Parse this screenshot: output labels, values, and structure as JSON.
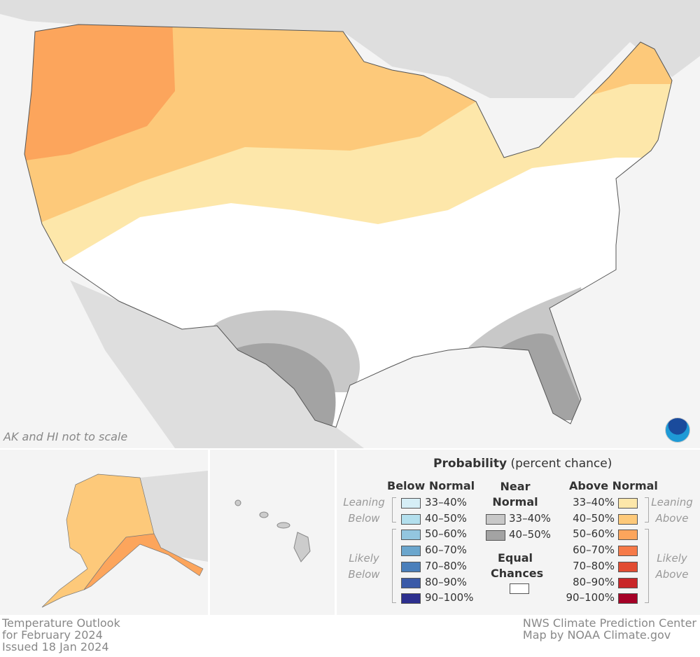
{
  "map": {
    "note": "AK and HI not to scale",
    "logo": "NOAA",
    "colors": {
      "water": "#f4f4f4",
      "land_other": "#dedede",
      "equal": "#ffffff",
      "lean_above_33": "#fde7aa",
      "lean_above_40": "#fdc97a",
      "likely_above_50": "#fca55c",
      "near_33": "#c8c8c8",
      "near_40": "#a3a3a3"
    }
  },
  "legend": {
    "title_bold": "Probability",
    "title_rest": "(percent chance)",
    "below": {
      "heading": "Below Normal",
      "leaning": "Leaning Below",
      "likely": "Likely Below",
      "items": [
        {
          "label": "33–40%",
          "color": "#d6eef6"
        },
        {
          "label": "40–50%",
          "color": "#b3dfed"
        },
        {
          "label": "50–60%",
          "color": "#93c6df"
        },
        {
          "label": "60–70%",
          "color": "#6ba6cd"
        },
        {
          "label": "70–80%",
          "color": "#4a7fbb"
        },
        {
          "label": "80–90%",
          "color": "#3a5aa8"
        },
        {
          "label": "90–100%",
          "color": "#2c2f8e"
        }
      ]
    },
    "near": {
      "heading": "Near Normal",
      "items": [
        {
          "label": "33–40%",
          "color": "#c8c8c8"
        },
        {
          "label": "40–50%",
          "color": "#a3a3a3"
        }
      ]
    },
    "equal": {
      "heading": "Equal Chances",
      "color": "#ffffff"
    },
    "above": {
      "heading": "Above Normal",
      "leaning": "Leaning Above",
      "likely": "Likely Above",
      "items": [
        {
          "label": "33–40%",
          "color": "#fde7aa"
        },
        {
          "label": "40–50%",
          "color": "#fdc97a"
        },
        {
          "label": "50–60%",
          "color": "#fca55c"
        },
        {
          "label": "60–70%",
          "color": "#f67a48"
        },
        {
          "label": "70–80%",
          "color": "#e24c32"
        },
        {
          "label": "80–90%",
          "color": "#c92628"
        },
        {
          "label": "90–100%",
          "color": "#a50026"
        }
      ]
    }
  },
  "footer": {
    "left": [
      "Temperature Outlook",
      "for February 2024",
      "Issued 18 Jan 2024"
    ],
    "right": [
      "NWS Climate Prediction Center",
      "Map by NOAA Climate.gov"
    ]
  }
}
